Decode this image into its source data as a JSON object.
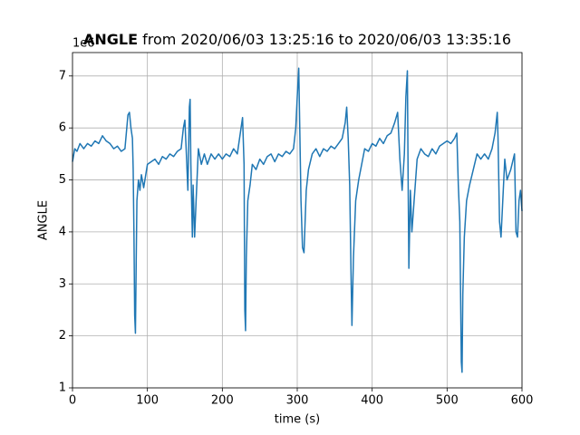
{
  "chart_data": {
    "type": "line",
    "title_bold": "ANGLE",
    "title": "from 2020/06/03 13:25:16 to 2020/06/03 13:35:16",
    "offset_label": "1e6",
    "xlabel": "time (s)",
    "ylabel": "ANGLE",
    "color": "#1f77b4",
    "grid": true,
    "xlim": [
      0,
      600
    ],
    "xticks": [
      0,
      100,
      200,
      300,
      400,
      500,
      600
    ],
    "ylim": [
      1,
      7.45
    ],
    "yticks": [
      1,
      2,
      3,
      4,
      5,
      6,
      7
    ],
    "x": [
      0,
      3,
      6,
      10,
      15,
      20,
      25,
      30,
      35,
      40,
      45,
      50,
      55,
      60,
      65,
      70,
      74,
      76,
      78,
      80,
      81,
      82,
      83,
      84,
      85,
      86,
      88,
      90,
      92,
      95,
      100,
      105,
      110,
      115,
      120,
      125,
      130,
      135,
      140,
      145,
      148,
      150,
      152,
      154,
      156,
      157,
      158,
      160,
      161,
      163,
      165,
      168,
      172,
      176,
      180,
      185,
      190,
      195,
      200,
      205,
      210,
      215,
      220,
      224,
      227,
      229,
      230,
      231,
      232,
      234,
      237,
      240,
      245,
      250,
      255,
      260,
      265,
      270,
      275,
      280,
      285,
      290,
      295,
      298,
      300,
      302,
      303,
      305,
      307,
      309,
      312,
      315,
      320,
      325,
      330,
      335,
      340,
      345,
      350,
      355,
      360,
      364,
      366,
      368,
      370,
      372,
      373,
      375,
      378,
      382,
      386,
      390,
      395,
      400,
      405,
      410,
      415,
      420,
      425,
      430,
      434,
      437,
      440,
      443,
      445,
      447,
      448,
      449,
      451,
      453,
      456,
      460,
      465,
      470,
      475,
      480,
      485,
      490,
      495,
      500,
      505,
      510,
      513,
      515,
      517,
      519,
      520,
      521,
      523,
      526,
      530,
      535,
      540,
      545,
      550,
      555,
      560,
      564,
      567,
      568,
      570,
      572,
      574,
      577,
      580,
      585,
      590,
      592,
      594,
      596,
      598,
      600
    ],
    "values": [
      5.35,
      5.6,
      5.55,
      5.7,
      5.6,
      5.7,
      5.65,
      5.75,
      5.7,
      5.85,
      5.75,
      5.7,
      5.6,
      5.65,
      5.55,
      5.6,
      6.25,
      6.3,
      6.0,
      5.8,
      5.2,
      4.0,
      2.4,
      2.05,
      3.4,
      4.6,
      5.0,
      4.8,
      5.1,
      4.85,
      5.3,
      5.35,
      5.4,
      5.3,
      5.45,
      5.4,
      5.5,
      5.45,
      5.55,
      5.6,
      6.0,
      6.15,
      5.5,
      4.8,
      6.4,
      6.55,
      5.3,
      3.9,
      4.9,
      3.9,
      4.6,
      5.6,
      5.3,
      5.5,
      5.3,
      5.5,
      5.4,
      5.5,
      5.4,
      5.5,
      5.45,
      5.6,
      5.5,
      5.9,
      6.2,
      5.3,
      2.5,
      2.1,
      3.5,
      4.6,
      4.9,
      5.3,
      5.2,
      5.4,
      5.3,
      5.45,
      5.5,
      5.35,
      5.5,
      5.45,
      5.55,
      5.5,
      5.6,
      6.0,
      6.6,
      7.15,
      6.3,
      4.6,
      3.7,
      3.6,
      4.8,
      5.2,
      5.5,
      5.6,
      5.45,
      5.6,
      5.55,
      5.65,
      5.6,
      5.7,
      5.8,
      6.1,
      6.4,
      5.8,
      4.9,
      3.0,
      2.2,
      3.5,
      4.6,
      5.0,
      5.3,
      5.6,
      5.55,
      5.7,
      5.65,
      5.8,
      5.7,
      5.85,
      5.9,
      6.1,
      6.3,
      5.4,
      4.8,
      5.5,
      6.6,
      7.1,
      5.0,
      3.3,
      4.8,
      4.0,
      4.6,
      5.4,
      5.6,
      5.5,
      5.45,
      5.6,
      5.5,
      5.65,
      5.7,
      5.75,
      5.7,
      5.8,
      5.9,
      4.9,
      4.2,
      1.5,
      1.3,
      2.8,
      3.9,
      4.6,
      4.9,
      5.2,
      5.5,
      5.4,
      5.5,
      5.4,
      5.6,
      5.9,
      6.3,
      5.8,
      4.2,
      3.9,
      4.5,
      5.4,
      5.0,
      5.2,
      5.5,
      4.0,
      3.9,
      4.6,
      4.8,
      4.4
    ]
  }
}
